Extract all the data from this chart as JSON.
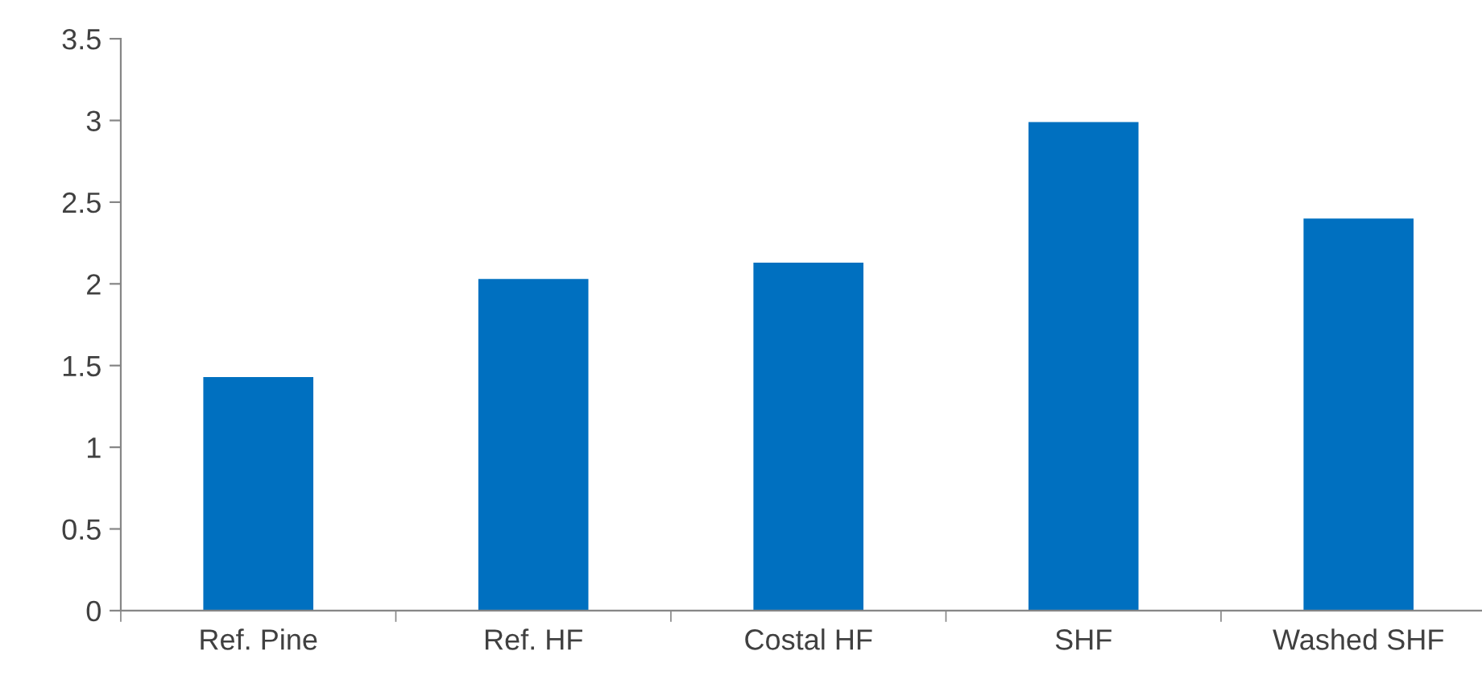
{
  "chart_data": {
    "type": "bar",
    "categories": [
      "Ref. Pine",
      "Ref. HF",
      "Costal HF",
      "SHF",
      "Washed SHF"
    ],
    "values": [
      1.43,
      2.03,
      2.13,
      2.99,
      2.4
    ],
    "color": "#0070c0",
    "ylim": [
      0,
      3.5
    ],
    "yticks": [
      0,
      0.5,
      1,
      1.5,
      2,
      2.5,
      3,
      3.5
    ],
    "grid": false
  }
}
